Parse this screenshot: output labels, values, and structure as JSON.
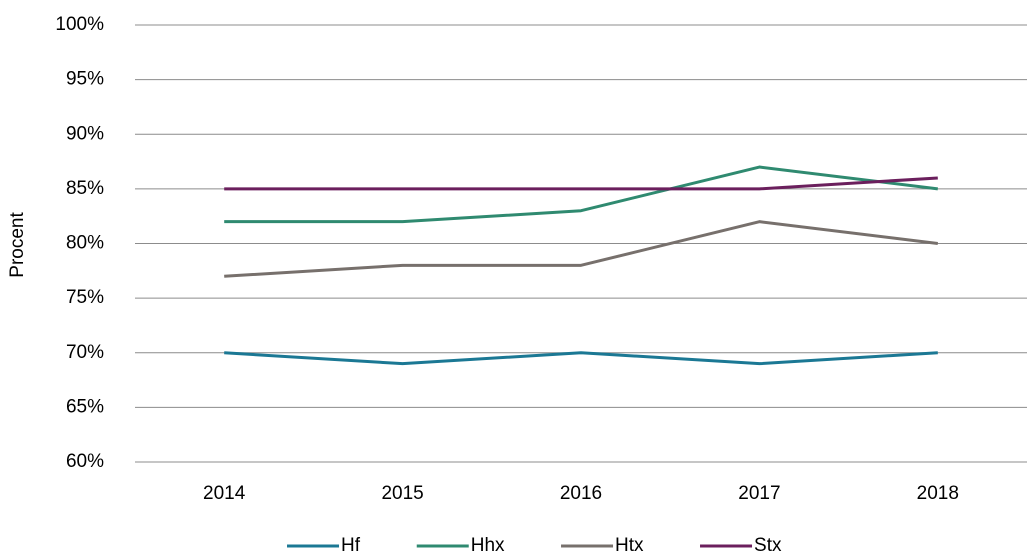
{
  "chart_data": {
    "type": "line",
    "y_label": "Procent",
    "categories": [
      "2014",
      "2015",
      "2016",
      "2017",
      "2018"
    ],
    "series": [
      {
        "name": "Hf",
        "color": "#1b7894",
        "values": [
          70,
          69,
          70,
          69,
          70
        ]
      },
      {
        "name": "Hhx",
        "color": "#2f8a70",
        "values": [
          82,
          82,
          83,
          87,
          85
        ]
      },
      {
        "name": "Htx",
        "color": "#77706c",
        "values": [
          77,
          78,
          78,
          82,
          80
        ]
      },
      {
        "name": "Stx",
        "color": "#6b1f5d",
        "values": [
          85,
          85,
          85,
          85,
          86
        ]
      }
    ],
    "ylim": [
      60,
      100
    ],
    "yticks": [
      {
        "value": 60,
        "label": "60%"
      },
      {
        "value": 65,
        "label": "65%"
      },
      {
        "value": 70,
        "label": "70%"
      },
      {
        "value": 75,
        "label": "75%"
      },
      {
        "value": 80,
        "label": "80%"
      },
      {
        "value": 85,
        "label": "85%"
      },
      {
        "value": 90,
        "label": "90%"
      },
      {
        "value": 95,
        "label": "95%"
      },
      {
        "value": 100,
        "label": "100%"
      }
    ],
    "grid": true,
    "legend": "bottom"
  }
}
